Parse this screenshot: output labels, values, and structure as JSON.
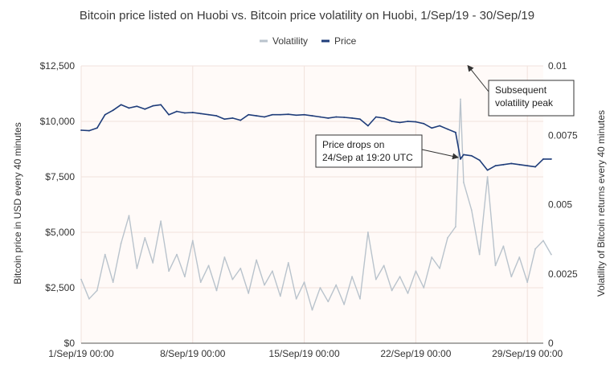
{
  "chart_data": {
    "type": "line",
    "title": "Bitcoin price listed on Huobi vs. Bitcoin price volatility on Huobi, 1/Sep/19 - 30/Sep/19",
    "legend_position": "top-center",
    "grid": true,
    "xlabel": "",
    "x_range": [
      "2019-09-01",
      "2019-09-30"
    ],
    "x_ticks": [
      "1/Sep/19 00:00",
      "8/Sep/19 00:00",
      "15/Sep/19 00:00",
      "22/Sep/19 00:00",
      "29/Sep/19 00:00"
    ],
    "y_left": {
      "label": "Bitcoin price in USD every 40 minutes",
      "range": [
        0,
        12500
      ],
      "ticks": [
        "$0",
        "$2,500",
        "$5,000",
        "$7,500",
        "$10,000",
        "$12,500"
      ]
    },
    "y_right": {
      "label": "Volatility of Bitcoin returns every 40 minutes",
      "range": [
        0,
        0.01
      ],
      "ticks": [
        "0",
        "0.0025",
        "0.005",
        "0.0075",
        "0.01"
      ]
    },
    "series": [
      {
        "name": "Volatility",
        "axis": "right",
        "color": "#b9c3cc",
        "points": [
          [
            "2019-09-01",
            0.0023
          ],
          [
            "2019-09-01T12:00",
            0.0016
          ],
          [
            "2019-09-02",
            0.0019
          ],
          [
            "2019-09-02T12:00",
            0.0032
          ],
          [
            "2019-09-03",
            0.0022
          ],
          [
            "2019-09-03T12:00",
            0.0036
          ],
          [
            "2019-09-04",
            0.0046
          ],
          [
            "2019-09-04T12:00",
            0.0027
          ],
          [
            "2019-09-05",
            0.0038
          ],
          [
            "2019-09-05T12:00",
            0.0029
          ],
          [
            "2019-09-06",
            0.0044
          ],
          [
            "2019-09-06T12:00",
            0.0026
          ],
          [
            "2019-09-07",
            0.0032
          ],
          [
            "2019-09-07T12:00",
            0.0024
          ],
          [
            "2019-09-08",
            0.0037
          ],
          [
            "2019-09-08T12:00",
            0.0022
          ],
          [
            "2019-09-09",
            0.0028
          ],
          [
            "2019-09-09T12:00",
            0.0019
          ],
          [
            "2019-09-10",
            0.0031
          ],
          [
            "2019-09-10T12:00",
            0.0023
          ],
          [
            "2019-09-11",
            0.0027
          ],
          [
            "2019-09-11T12:00",
            0.0018
          ],
          [
            "2019-09-12",
            0.003
          ],
          [
            "2019-09-12T12:00",
            0.0021
          ],
          [
            "2019-09-13",
            0.0026
          ],
          [
            "2019-09-13T12:00",
            0.0017
          ],
          [
            "2019-09-14",
            0.0029
          ],
          [
            "2019-09-14T12:00",
            0.0016
          ],
          [
            "2019-09-15",
            0.0022
          ],
          [
            "2019-09-15T12:00",
            0.0012
          ],
          [
            "2019-09-16",
            0.002
          ],
          [
            "2019-09-16T12:00",
            0.0015
          ],
          [
            "2019-09-17",
            0.0021
          ],
          [
            "2019-09-17T12:00",
            0.0014
          ],
          [
            "2019-09-18",
            0.0024
          ],
          [
            "2019-09-18T12:00",
            0.0016
          ],
          [
            "2019-09-19",
            0.004
          ],
          [
            "2019-09-19T12:00",
            0.0023
          ],
          [
            "2019-09-20",
            0.0028
          ],
          [
            "2019-09-20T12:00",
            0.0019
          ],
          [
            "2019-09-21",
            0.0024
          ],
          [
            "2019-09-21T12:00",
            0.0018
          ],
          [
            "2019-09-22",
            0.0026
          ],
          [
            "2019-09-22T12:00",
            0.002
          ],
          [
            "2019-09-23",
            0.0031
          ],
          [
            "2019-09-23T12:00",
            0.0027
          ],
          [
            "2019-09-24",
            0.0038
          ],
          [
            "2019-09-24T12:00",
            0.0042
          ],
          [
            "2019-09-24T19:20",
            0.0088
          ],
          [
            "2019-09-25",
            0.0058
          ],
          [
            "2019-09-25T12:00",
            0.0048
          ],
          [
            "2019-09-26",
            0.0032
          ],
          [
            "2019-09-26T12:00",
            0.006
          ],
          [
            "2019-09-27",
            0.0028
          ],
          [
            "2019-09-27T12:00",
            0.0035
          ],
          [
            "2019-09-28",
            0.0024
          ],
          [
            "2019-09-28T12:00",
            0.0031
          ],
          [
            "2019-09-29",
            0.0022
          ],
          [
            "2019-09-29T12:00",
            0.0034
          ],
          [
            "2019-09-30",
            0.0037
          ],
          [
            "2019-09-30T12:00",
            0.0032
          ]
        ]
      },
      {
        "name": "Price",
        "axis": "left",
        "color": "#1f3d7a",
        "points": [
          [
            "2019-09-01",
            9600
          ],
          [
            "2019-09-01T12:00",
            9580
          ],
          [
            "2019-09-02",
            9700
          ],
          [
            "2019-09-02T12:00",
            10300
          ],
          [
            "2019-09-03",
            10500
          ],
          [
            "2019-09-03T12:00",
            10750
          ],
          [
            "2019-09-04",
            10600
          ],
          [
            "2019-09-04T12:00",
            10680
          ],
          [
            "2019-09-05",
            10550
          ],
          [
            "2019-09-05T12:00",
            10700
          ],
          [
            "2019-09-06",
            10750
          ],
          [
            "2019-09-06T12:00",
            10300
          ],
          [
            "2019-09-07",
            10450
          ],
          [
            "2019-09-07T12:00",
            10380
          ],
          [
            "2019-09-08",
            10400
          ],
          [
            "2019-09-08T12:00",
            10350
          ],
          [
            "2019-09-09",
            10300
          ],
          [
            "2019-09-09T12:00",
            10250
          ],
          [
            "2019-09-10",
            10100
          ],
          [
            "2019-09-10T12:00",
            10150
          ],
          [
            "2019-09-11",
            10050
          ],
          [
            "2019-09-11T12:00",
            10300
          ],
          [
            "2019-09-12",
            10250
          ],
          [
            "2019-09-12T12:00",
            10200
          ],
          [
            "2019-09-13",
            10300
          ],
          [
            "2019-09-13T12:00",
            10300
          ],
          [
            "2019-09-14",
            10320
          ],
          [
            "2019-09-14T12:00",
            10280
          ],
          [
            "2019-09-15",
            10300
          ],
          [
            "2019-09-15T12:00",
            10250
          ],
          [
            "2019-09-16",
            10200
          ],
          [
            "2019-09-16T12:00",
            10150
          ],
          [
            "2019-09-17",
            10200
          ],
          [
            "2019-09-17T12:00",
            10180
          ],
          [
            "2019-09-18",
            10150
          ],
          [
            "2019-09-18T12:00",
            10100
          ],
          [
            "2019-09-19",
            9800
          ],
          [
            "2019-09-19T12:00",
            10200
          ],
          [
            "2019-09-20",
            10150
          ],
          [
            "2019-09-20T12:00",
            10000
          ],
          [
            "2019-09-21",
            9950
          ],
          [
            "2019-09-21T12:00",
            10000
          ],
          [
            "2019-09-22",
            9980
          ],
          [
            "2019-09-22T12:00",
            9900
          ],
          [
            "2019-09-23",
            9700
          ],
          [
            "2019-09-23T12:00",
            9800
          ],
          [
            "2019-09-24",
            9650
          ],
          [
            "2019-09-24T12:00",
            9500
          ],
          [
            "2019-09-24T19:20",
            8300
          ],
          [
            "2019-09-25",
            8500
          ],
          [
            "2019-09-25T12:00",
            8450
          ],
          [
            "2019-09-26",
            8250
          ],
          [
            "2019-09-26T12:00",
            7800
          ],
          [
            "2019-09-27",
            8000
          ],
          [
            "2019-09-27T12:00",
            8050
          ],
          [
            "2019-09-28",
            8100
          ],
          [
            "2019-09-28T12:00",
            8050
          ],
          [
            "2019-09-29",
            8000
          ],
          [
            "2019-09-29T12:00",
            7950
          ],
          [
            "2019-09-30",
            8300
          ],
          [
            "2019-09-30T12:00",
            8300
          ]
        ]
      }
    ],
    "annotations": [
      {
        "name": "volatility-peak",
        "lines": [
          "Subsequent",
          "volatility peak"
        ],
        "points_to": [
          "2019-09-24T20:40",
          0.0092
        ]
      },
      {
        "name": "price-drop",
        "lines": [
          "Price drops on",
          "24/Sep at 19:20 UTC"
        ],
        "points_to": [
          "2019-09-24T19:20",
          8300
        ]
      }
    ]
  }
}
